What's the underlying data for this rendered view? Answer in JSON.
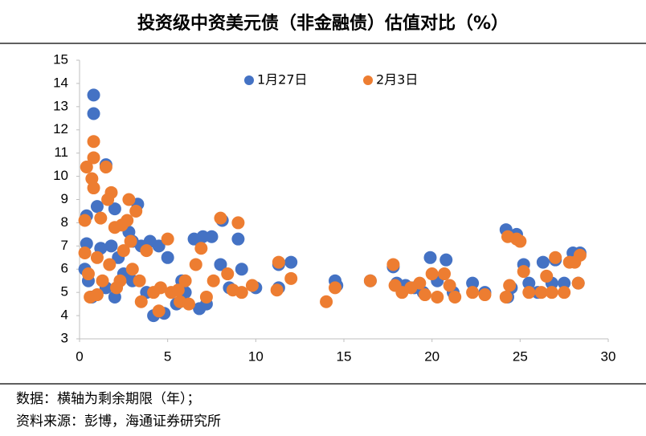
{
  "chart_data": {
    "type": "scatter",
    "title": "投资级中资美元债（非金融债）估值对比（%）",
    "notes": [
      "数据：横轴为剩余期限（年）；",
      "资料来源：彭博，海通证券研究所"
    ],
    "xlim": [
      0,
      30
    ],
    "xticks": [
      0,
      5,
      10,
      15,
      20,
      25,
      30
    ],
    "ylim": [
      3,
      15
    ],
    "yticks": [
      3,
      4,
      5,
      6,
      7,
      8,
      9,
      10,
      11,
      12,
      13,
      14,
      15
    ],
    "legend": "top",
    "series": [
      {
        "name": "1月27日",
        "color": "#4472c4",
        "x": [
          0.8,
          0.8,
          1.5,
          0.4,
          0.4,
          1,
          2,
          3.3,
          2.8,
          0.3,
          0.5,
          0.7,
          1.2,
          1.8,
          2.2,
          2.5,
          3,
          3.5,
          4,
          4.5,
          5,
          4.2,
          4.8,
          5.5,
          6,
          6.5,
          7,
          7.5,
          8,
          8.1,
          8.5,
          9,
          9.2,
          10,
          11.3,
          11.3,
          12,
          14.5,
          14.6,
          16.5,
          17.8,
          18,
          18.5,
          19,
          19.5,
          19.9,
          20.3,
          20.8,
          21.2,
          22.3,
          23,
          24.2,
          24.5,
          24.8,
          25.2,
          25.5,
          26.3,
          26.8,
          27,
          27.5,
          28,
          28.4,
          28.3,
          24.3,
          26,
          3.8,
          2,
          6.8,
          7.2,
          1.5,
          3,
          5.8
        ],
        "values": [
          13.5,
          12.7,
          10.5,
          8.3,
          7.1,
          8.7,
          8.6,
          8.8,
          7.6,
          6,
          5.5,
          4.8,
          6.9,
          7,
          6.5,
          5.8,
          7.2,
          7,
          7.2,
          7,
          6.5,
          4,
          4.1,
          4.5,
          5,
          7.3,
          7.4,
          7.4,
          6.2,
          8.1,
          5.2,
          7.3,
          6,
          5.2,
          5.2,
          6.2,
          6.3,
          5.5,
          5.3,
          5.5,
          6.1,
          5.4,
          5.3,
          5.2,
          5,
          6.5,
          5.5,
          6.4,
          5,
          5.4,
          5,
          7.7,
          5.2,
          7.5,
          6.2,
          5.4,
          6.3,
          5.4,
          6.4,
          5.4,
          6.7,
          6.7,
          5.4,
          4.8,
          5,
          5,
          4.8,
          4.3,
          4.5,
          5.2,
          5.5,
          5.5
        ]
      },
      {
        "name": "2月3日",
        "color": "#ed7d31",
        "x": [
          0.4,
          0.7,
          0.8,
          0.8,
          0.8,
          1.5,
          1.8,
          1.6,
          2.8,
          3.2,
          2.7,
          1.2,
          0.3,
          2,
          2.4,
          2.9,
          0.3,
          0.5,
          0.6,
          1,
          1.3,
          1.7,
          2.1,
          2.5,
          3,
          3.4,
          3.8,
          4.2,
          4.6,
          5,
          5.2,
          5.7,
          6.2,
          6.6,
          6.9,
          7.2,
          7.6,
          8,
          8.4,
          8.7,
          9,
          9.2,
          9.8,
          11.2,
          11.3,
          12,
          14,
          14.5,
          16.5,
          17.8,
          17.9,
          18.3,
          18.8,
          19.3,
          19.6,
          20,
          20.3,
          20.7,
          21.3,
          21,
          22.3,
          23,
          24.2,
          24.3,
          24.4,
          24.8,
          25,
          25.2,
          25.5,
          26.2,
          26.5,
          26.8,
          27,
          27.5,
          27.8,
          28.1,
          28.4,
          28.3,
          4.5,
          6,
          3.5,
          1,
          2.3,
          5.6
        ],
        "values": [
          10.4,
          9.9,
          11.5,
          10.8,
          9.5,
          10.4,
          9.3,
          9,
          9,
          8.5,
          8.1,
          8.2,
          8.1,
          7.8,
          7.9,
          7.2,
          6.7,
          5.8,
          4.8,
          6.5,
          5.5,
          6.2,
          5.2,
          6.8,
          6,
          5.5,
          6.8,
          5,
          5.2,
          7.3,
          5,
          4.6,
          4.5,
          6.2,
          6.9,
          4.8,
          5.5,
          8.2,
          5.8,
          5.1,
          8,
          5,
          5.3,
          5.1,
          6.3,
          5.6,
          4.6,
          5.2,
          5.5,
          6.2,
          5.3,
          5,
          5.2,
          5.4,
          4.9,
          5.8,
          4.8,
          5.8,
          4.8,
          5.3,
          5,
          4.9,
          4.8,
          7.4,
          5.3,
          7.3,
          7.2,
          5.9,
          5,
          5,
          5.7,
          5,
          6.5,
          5,
          6.3,
          6.3,
          6.6,
          5.4,
          4.2,
          5.5,
          4.6,
          4.9,
          5.5,
          5.1
        ]
      }
    ]
  }
}
